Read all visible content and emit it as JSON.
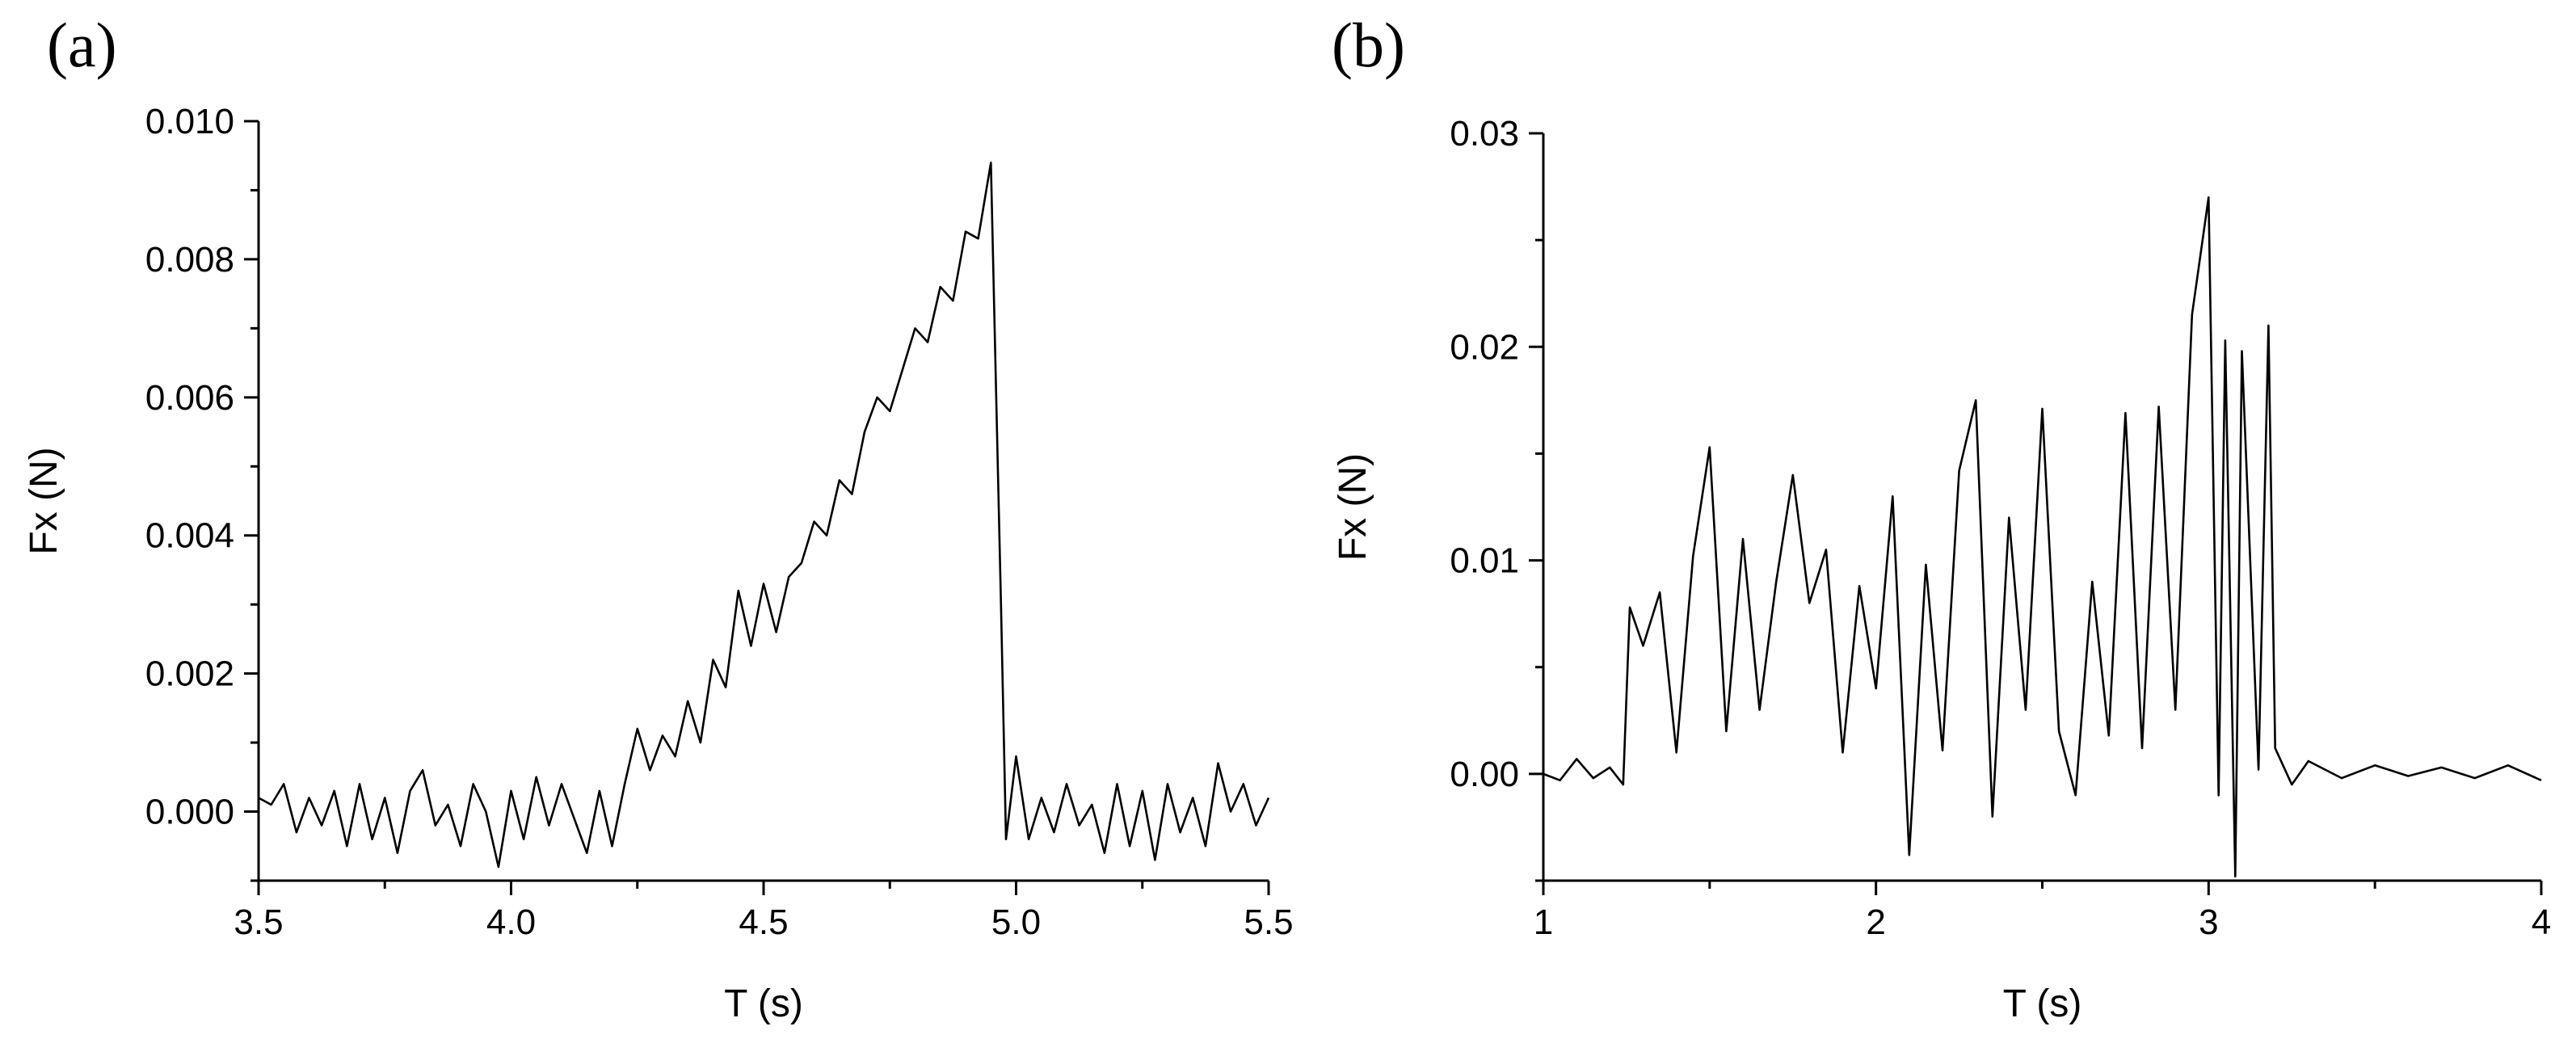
{
  "chart_data": [
    {
      "type": "line",
      "panel_label": "(a)",
      "title": "",
      "xlabel": "T (s)",
      "ylabel": "Fx (N)",
      "xlim": [
        3.5,
        5.5
      ],
      "ylim": [
        -0.001,
        0.01
      ],
      "xticks": [
        3.5,
        4.0,
        4.5,
        5.0,
        5.5
      ],
      "xtick_labels": [
        "3.5",
        "4.0",
        "4.5",
        "5.0",
        "5.5"
      ],
      "yticks": [
        0.0,
        0.002,
        0.004,
        0.006,
        0.008,
        0.01
      ],
      "ytick_labels": [
        "0.000",
        "0.002",
        "0.004",
        "0.006",
        "0.008",
        "0.010"
      ],
      "grid": false,
      "series": [
        {
          "x": [
            3.5,
            3.525,
            3.55,
            3.575,
            3.6,
            3.625,
            3.65,
            3.675,
            3.7,
            3.725,
            3.75,
            3.775,
            3.8,
            3.825,
            3.85,
            3.875,
            3.9,
            3.925,
            3.95,
            3.975,
            4.0,
            4.025,
            4.05,
            4.075,
            4.1,
            4.125,
            4.15,
            4.175,
            4.2,
            4.225,
            4.25,
            4.275,
            4.3,
            4.325,
            4.35,
            4.375,
            4.4,
            4.425,
            4.45,
            4.475,
            4.5,
            4.525,
            4.55,
            4.575,
            4.6,
            4.625,
            4.65,
            4.675,
            4.7,
            4.725,
            4.75,
            4.775,
            4.8,
            4.825,
            4.85,
            4.875,
            4.9,
            4.925,
            4.95,
            4.96,
            4.97,
            4.98,
            5.0,
            5.025,
            5.05,
            5.075,
            5.1,
            5.125,
            5.15,
            5.175,
            5.2,
            5.225,
            5.25,
            5.275,
            5.3,
            5.325,
            5.35,
            5.375,
            5.4,
            5.425,
            5.45,
            5.475,
            5.5
          ],
          "y": [
            0.0002,
            0.0001,
            0.0004,
            -0.0003,
            0.0002,
            -0.0002,
            0.0003,
            -0.0005,
            0.0004,
            -0.0004,
            0.0002,
            -0.0006,
            0.0003,
            0.0006,
            -0.0002,
            0.0001,
            -0.0005,
            0.0004,
            0.0,
            -0.0008,
            0.0003,
            -0.0004,
            0.0005,
            -0.0002,
            0.0004,
            -0.0001,
            -0.0006,
            0.0003,
            -0.0005,
            0.0004,
            0.0012,
            0.0006,
            0.0011,
            0.0008,
            0.0016,
            0.001,
            0.0022,
            0.0018,
            0.0032,
            0.0024,
            0.0033,
            0.0026,
            0.0034,
            0.0036,
            0.0042,
            0.004,
            0.0048,
            0.0046,
            0.0055,
            0.006,
            0.0058,
            0.0064,
            0.007,
            0.0068,
            0.0076,
            0.0074,
            0.0084,
            0.0083,
            0.0094,
            0.0062,
            0.003,
            -0.0004,
            0.0008,
            -0.0004,
            0.0002,
            -0.0003,
            0.0004,
            -0.0002,
            0.0001,
            -0.0006,
            0.0004,
            -0.0005,
            0.0003,
            -0.0007,
            0.0004,
            -0.0003,
            0.0002,
            -0.0005,
            0.0007,
            0.0,
            0.0004,
            -0.0002,
            0.0002
          ]
        }
      ]
    },
    {
      "type": "line",
      "panel_label": "(b)",
      "title": "",
      "xlabel": "T (s)",
      "ylabel": "Fx (N)",
      "xlim": [
        1,
        4
      ],
      "ylim": [
        -0.005,
        0.03
      ],
      "xticks": [
        1,
        2,
        3,
        4
      ],
      "xtick_labels": [
        "1",
        "2",
        "3",
        "4"
      ],
      "yticks": [
        0.0,
        0.01,
        0.02,
        0.03
      ],
      "ytick_labels": [
        "0.00",
        "0.01",
        "0.02",
        "0.03"
      ],
      "grid": false,
      "series": [
        {
          "x": [
            1.0,
            1.05,
            1.1,
            1.15,
            1.2,
            1.24,
            1.26,
            1.3,
            1.35,
            1.4,
            1.45,
            1.5,
            1.55,
            1.6,
            1.65,
            1.7,
            1.75,
            1.8,
            1.85,
            1.9,
            1.95,
            2.0,
            2.05,
            2.1,
            2.15,
            2.2,
            2.25,
            2.3,
            2.35,
            2.4,
            2.45,
            2.5,
            2.55,
            2.6,
            2.65,
            2.7,
            2.75,
            2.8,
            2.85,
            2.9,
            2.95,
            3.0,
            3.03,
            3.05,
            3.08,
            3.1,
            3.15,
            3.18,
            3.2,
            3.25,
            3.3,
            3.4,
            3.5,
            3.6,
            3.7,
            3.8,
            3.9,
            4.0
          ],
          "y": [
            0.0,
            -0.0003,
            0.0007,
            -0.0002,
            0.0003,
            -0.0005,
            0.0078,
            0.006,
            0.0085,
            0.001,
            0.0102,
            0.0153,
            0.002,
            0.011,
            0.003,
            0.009,
            0.014,
            0.008,
            0.0105,
            0.001,
            0.0088,
            0.004,
            0.013,
            -0.0038,
            0.0098,
            0.0011,
            0.0142,
            0.0175,
            -0.002,
            0.012,
            0.003,
            0.0171,
            0.002,
            -0.001,
            0.009,
            0.0018,
            0.0169,
            0.0012,
            0.0172,
            0.003,
            0.0215,
            0.027,
            -0.001,
            0.0203,
            -0.0048,
            0.0198,
            0.0002,
            0.021,
            0.0012,
            -0.0005,
            0.0006,
            -0.0002,
            0.0004,
            -0.0001,
            0.0003,
            -0.0002,
            0.0004,
            -0.0003
          ]
        }
      ]
    }
  ]
}
